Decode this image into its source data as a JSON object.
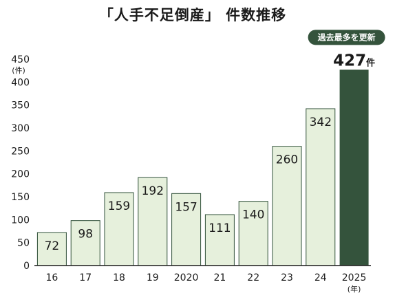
{
  "chart_data": {
    "type": "bar",
    "title": "「人手不足倒産」 件数推移",
    "categories": [
      "16",
      "17",
      "18",
      "19",
      "2020",
      "21",
      "22",
      "23",
      "24",
      "2025"
    ],
    "values": [
      72,
      98,
      159,
      192,
      157,
      111,
      140,
      260,
      342,
      427
    ],
    "ylim": [
      0,
      450
    ],
    "yticks": [
      0,
      50,
      100,
      150,
      200,
      250,
      300,
      350,
      400,
      450
    ],
    "y_unit": "(件)",
    "x_unit": "(年)",
    "highlight": {
      "index": 9,
      "value_text": "427",
      "unit_text": "件",
      "badge": "過去最多を更新"
    },
    "grid": false,
    "legend": "none",
    "colors": {
      "bar_fill": "#e6f0dc",
      "bar_stroke": "#2f4f38",
      "highlight_fill": "#34533c",
      "badge_fill": "#34533c",
      "axis": "#1a1a1a"
    }
  }
}
